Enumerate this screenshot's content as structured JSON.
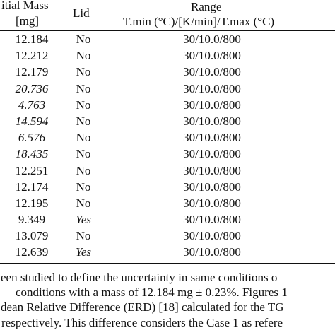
{
  "table": {
    "headers": {
      "mass_line1": "itial Mass",
      "mass_line2": "[mg]",
      "lid": "Lid",
      "range_line1": "Range",
      "range_line2": "T.min (°C)/[K/min]/T.max (°C)"
    },
    "rows": [
      {
        "mass": "12.184",
        "mass_italic": false,
        "lid": "No",
        "lid_italic": false,
        "range": "30/10.0/800"
      },
      {
        "mass": "12.212",
        "mass_italic": false,
        "lid": "No",
        "lid_italic": false,
        "range": "30/10.0/800"
      },
      {
        "mass": "12.179",
        "mass_italic": false,
        "lid": "No",
        "lid_italic": false,
        "range": "30/10.0/800"
      },
      {
        "mass": "20.736",
        "mass_italic": true,
        "lid": "No",
        "lid_italic": false,
        "range": "30/10.0/800"
      },
      {
        "mass": "4.763",
        "mass_italic": true,
        "lid": "No",
        "lid_italic": false,
        "range": "30/10.0/800"
      },
      {
        "mass": "14.594",
        "mass_italic": true,
        "lid": "No",
        "lid_italic": false,
        "range": "30/10.0/800"
      },
      {
        "mass": "6.576",
        "mass_italic": true,
        "lid": "No",
        "lid_italic": false,
        "range": "30/10.0/800"
      },
      {
        "mass": "18.435",
        "mass_italic": true,
        "lid": "No",
        "lid_italic": false,
        "range": "30/10.0/800"
      },
      {
        "mass": "12.251",
        "mass_italic": false,
        "lid": "No",
        "lid_italic": false,
        "range": "30/10.0/800"
      },
      {
        "mass": "12.174",
        "mass_italic": false,
        "lid": "No",
        "lid_italic": false,
        "range": "30/10.0/800"
      },
      {
        "mass": "12.195",
        "mass_italic": false,
        "lid": "No",
        "lid_italic": false,
        "range": "30/10.0/800"
      },
      {
        "mass": "9.349",
        "mass_italic": false,
        "lid": "Yes",
        "lid_italic": true,
        "range": "30/10.0/800"
      },
      {
        "mass": "13.079",
        "mass_italic": false,
        "lid": "No",
        "lid_italic": false,
        "range": "30/10.0/800"
      },
      {
        "mass": "12.639",
        "mass_italic": false,
        "lid": "Yes",
        "lid_italic": true,
        "range": "30/10.0/800"
      }
    ]
  },
  "paragraph": {
    "lines": [
      "een studied to define the uncertainty in same conditions o",
      "conditions with a mass of 12.184 mg ± 0.23%. Figures 1",
      "dean Relative Difference (ERD) [18] calculated for the TG",
      "respectively. This difference considers the Case 1 as refere"
    ]
  }
}
